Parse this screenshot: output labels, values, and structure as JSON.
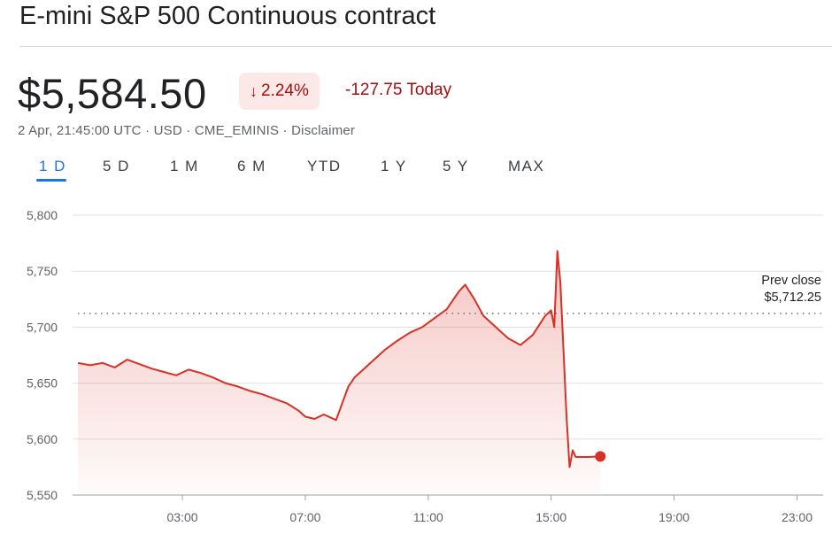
{
  "header": {
    "title": "E-mini S&P 500 Continuous contract",
    "price": "$5,584.50",
    "percent_change": "2.24%",
    "percent_arrow": "↓",
    "change_today": "-127.75 Today",
    "meta": "2 Apr, 21:45:00 UTC · USD · CME_EMINIS · Disclaimer"
  },
  "range_tabs": [
    {
      "label": "1 D",
      "active": true
    },
    {
      "label": "5 D",
      "active": false
    },
    {
      "label": "1 M",
      "active": false
    },
    {
      "label": "6 M",
      "active": false
    },
    {
      "label": "YTD",
      "active": false
    },
    {
      "label": "1 Y",
      "active": false
    },
    {
      "label": "5 Y",
      "active": false
    },
    {
      "label": "MAX",
      "active": false
    }
  ],
  "prev_close": {
    "label": "Prev close",
    "value": "$5,712.25"
  },
  "colors": {
    "line": "#d93025",
    "negative_text": "#a50e0e",
    "badge_bg": "#fce8e6",
    "accent": "#1a73e8"
  },
  "chart_data": {
    "type": "area",
    "ylim": [
      5550,
      5800
    ],
    "yticks": [
      5550,
      5600,
      5650,
      5700,
      5750,
      5800
    ],
    "ytick_labels": [
      "5,550",
      "5,600",
      "5,650",
      "5,700",
      "5,750",
      "5,800"
    ],
    "xlim": [
      -0.4,
      23.85
    ],
    "xticks": [
      3,
      7,
      11,
      15,
      19,
      23
    ],
    "xtick_labels": [
      "03:00",
      "07:00",
      "11:00",
      "15:00",
      "19:00",
      "23:00"
    ],
    "prev_close": 5712.25,
    "grid": true,
    "series": [
      {
        "x": [
          -0.4,
          0.0,
          0.4,
          0.8,
          1.2,
          1.6,
          2.0,
          2.4,
          2.8,
          3.2,
          3.6,
          4.0,
          4.4,
          4.8,
          5.2,
          5.6,
          6.0,
          6.4,
          6.8,
          7.0,
          7.3,
          7.6,
          8.0,
          8.4,
          8.6,
          8.8,
          9.2,
          9.6,
          10.0,
          10.4,
          10.8,
          11.2,
          11.6,
          12.0,
          12.2,
          12.5,
          12.8,
          13.2,
          13.6,
          14.0,
          14.4,
          14.8,
          15.0,
          15.1,
          15.2,
          15.3,
          15.4,
          15.5,
          15.6,
          15.7,
          15.8,
          16.0,
          16.2,
          16.6
        ],
        "values": [
          5668,
          5666,
          5668,
          5664,
          5671,
          5667,
          5663,
          5660,
          5657,
          5662,
          5659,
          5655,
          5650,
          5647,
          5643,
          5640,
          5636,
          5632,
          5625,
          5620,
          5618,
          5622,
          5617,
          5647,
          5655,
          5660,
          5670,
          5680,
          5688,
          5695,
          5700,
          5708,
          5716,
          5732,
          5738,
          5725,
          5710,
          5700,
          5690,
          5684,
          5693,
          5710,
          5715,
          5700,
          5768,
          5740,
          5680,
          5620,
          5575,
          5590,
          5584,
          5584,
          5584,
          5584.5
        ]
      }
    ]
  }
}
